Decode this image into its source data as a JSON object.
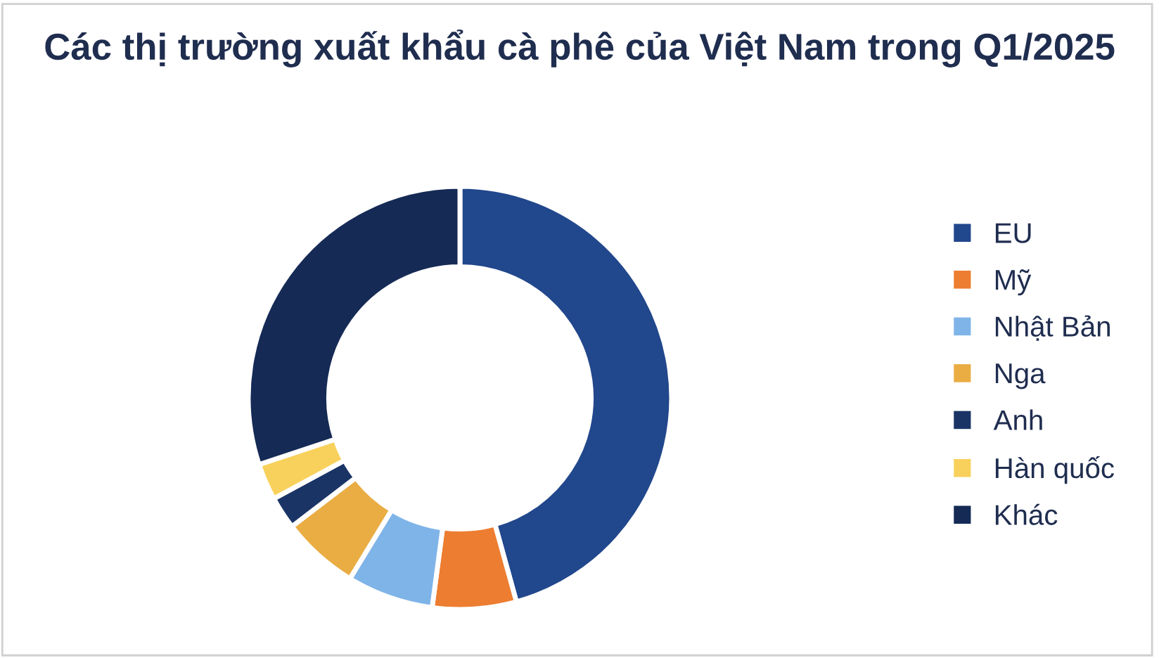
{
  "chart_data": {
    "type": "donut",
    "title": "Các thị trường xuất khẩu cà phê của Việt Nam trong Q1/2025",
    "categories": [
      "EU",
      "Mỹ",
      "Nhật Bản",
      "Nga",
      "Anh",
      "Hàn quốc",
      "Khác"
    ],
    "values": [
      45.7,
      6.4,
      6.6,
      5.9,
      2.5,
      2.8,
      30.1
    ],
    "colors": [
      "#21478c",
      "#ed7d31",
      "#7fb4e8",
      "#e9ad43",
      "#1a3466",
      "#f8d15c",
      "#152a55"
    ],
    "legend": "right"
  }
}
